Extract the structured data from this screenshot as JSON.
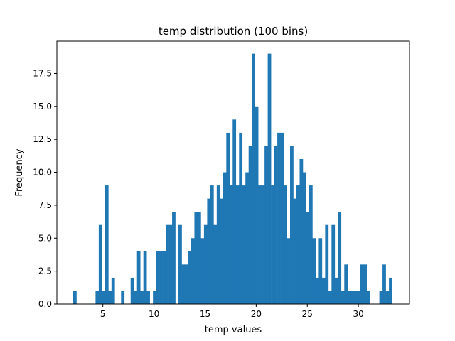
{
  "chart_data": {
    "type": "bar",
    "title": "temp distribution (100 bins)",
    "xlabel": "temp values",
    "ylabel": "Frequency",
    "xlim": [
      0.5,
      35.0
    ],
    "ylim": [
      0,
      19.95
    ],
    "xticks": [
      5,
      10,
      15,
      20,
      25,
      30
    ],
    "xtick_labels": [
      "5",
      "10",
      "15",
      "20",
      "25",
      "30"
    ],
    "yticks": [
      0.0,
      2.5,
      5.0,
      7.5,
      10.0,
      12.5,
      15.0,
      17.5
    ],
    "ytick_labels": [
      "0.0",
      "2.5",
      "5.0",
      "7.5",
      "10.0",
      "12.5",
      "15.0",
      "17.5"
    ],
    "bar_color": "#1f77b4",
    "bin_start": 2.1,
    "bin_width": 0.312,
    "values": [
      1,
      0,
      0,
      0,
      0,
      0,
      0,
      1,
      6,
      1,
      9,
      1,
      2,
      0,
      0,
      1,
      0,
      0,
      2,
      1,
      4,
      1,
      4,
      1,
      0,
      1,
      4,
      4,
      4,
      6,
      6,
      7,
      0,
      6,
      3,
      3,
      4,
      5,
      7,
      7,
      5,
      6,
      8,
      9,
      6,
      9,
      8,
      10,
      13,
      9,
      14,
      9,
      13,
      9,
      10,
      12,
      19,
      15,
      9,
      9,
      12,
      19,
      9,
      12,
      13,
      13,
      9,
      5,
      12,
      8,
      9,
      11,
      10,
      7,
      9,
      5,
      2,
      5,
      2,
      6,
      1,
      6,
      2,
      7,
      1,
      3,
      1,
      1,
      1,
      1,
      3,
      3,
      1,
      0,
      0,
      0,
      1,
      3,
      1,
      2
    ],
    "grid": false,
    "legend": "none"
  }
}
